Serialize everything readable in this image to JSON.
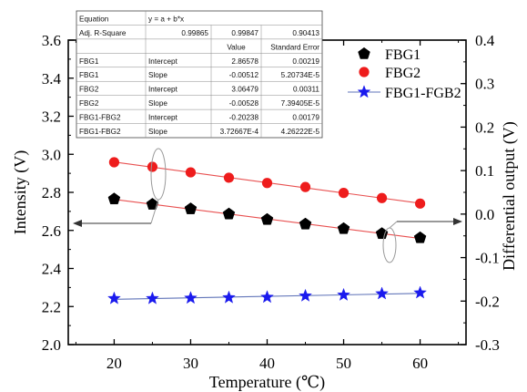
{
  "chart_data": {
    "type": "scatter",
    "xlabel": "Temperature (℃)",
    "ylabel_left": "Intensity (V)",
    "ylabel_right": "Differential output (V)",
    "xlim": [
      14,
      66
    ],
    "ylim_left": [
      2.0,
      3.6
    ],
    "ylim_right": [
      -0.3,
      0.4
    ],
    "x_ticks": [
      "20",
      "30",
      "40",
      "50",
      "60"
    ],
    "y_left_ticks": [
      "2.0",
      "2.2",
      "2.4",
      "2.6",
      "2.8",
      "3.0",
      "3.2",
      "3.4",
      "3.6"
    ],
    "y_right_ticks": [
      "-0.3",
      "-0.2",
      "-0.1",
      "0.0",
      "0.1",
      "0.2",
      "0.3",
      "0.4"
    ],
    "x": [
      20,
      25,
      30,
      35,
      40,
      45,
      50,
      55,
      60
    ],
    "grid": false,
    "legend_placement": "top-right",
    "series": [
      {
        "name": "FBG1",
        "axis": "left",
        "marker": "pentagon",
        "color": "#000000",
        "fit_color": "#e85050",
        "values": [
          2.765,
          2.737,
          2.713,
          2.686,
          2.657,
          2.633,
          2.609,
          2.583,
          2.561
        ]
      },
      {
        "name": "FBG2",
        "axis": "left",
        "marker": "circle",
        "color": "#ee1c1c",
        "fit_color": "#e85050",
        "values": [
          2.958,
          2.934,
          2.905,
          2.877,
          2.849,
          2.828,
          2.797,
          2.77,
          2.741
        ]
      },
      {
        "name": "FBG1-FGB2",
        "axis": "right",
        "marker": "star",
        "color": "#1a1aee",
        "fit_color": "#5f73b8",
        "values": [
          -0.194,
          -0.194,
          -0.193,
          -0.192,
          -0.191,
          -0.188,
          -0.186,
          -0.183,
          -0.181
        ]
      }
    ],
    "fit_table": {
      "top_rows": [
        [
          "Equation",
          "y = a + b*x",
          "",
          ""
        ],
        [
          "Adj. R-Square",
          "0.99865",
          "0.99847",
          "0.90413"
        ]
      ],
      "header": [
        "",
        "",
        "Value",
        "Standard Error"
      ],
      "rows": [
        [
          "FBG1",
          "Intercept",
          "2.86578",
          "0.00219"
        ],
        [
          "FBG1",
          "Slope",
          "-0.00512",
          "5.20734E-5"
        ],
        [
          "FBG2",
          "Intercept",
          "3.06479",
          "0.00311"
        ],
        [
          "FBG2",
          "Slope",
          "-0.00528",
          "7.39405E-5"
        ],
        [
          "FBG1-FBG2",
          "Intercept",
          "-0.20238",
          "0.00179"
        ],
        [
          "FBG1-FBG2",
          "Slope",
          "3.72667E-4",
          "4.26222E-5"
        ]
      ]
    }
  }
}
